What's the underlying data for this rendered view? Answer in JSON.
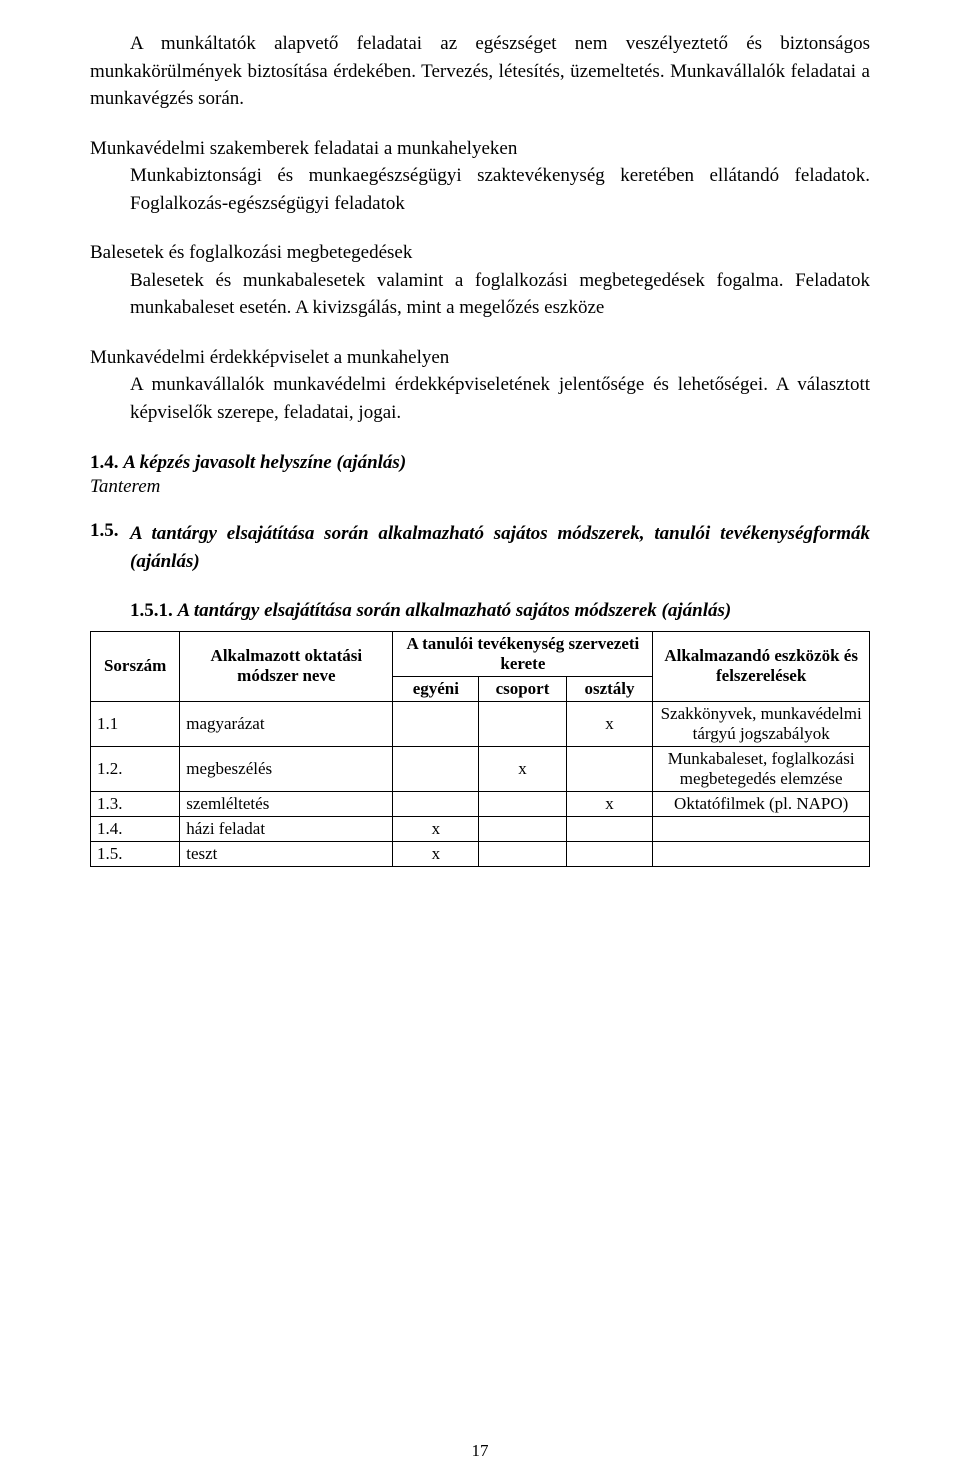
{
  "para1_indent": "A munkáltatók alapvető feladatai az egészséget nem veszélyeztető és biztonságos munkakörülmények biztosítása érdekében. Tervezés, létesítés, üzemeltetés. Munkavállalók feladatai a munkavégzés során.",
  "sec2_heading": "Munkavédelmi szakemberek feladatai a munkahelyeken",
  "sec2_body": "Munkabiztonsági és munkaegészségügyi szaktevékenység keretében ellátandó feladatok. Foglalkozás-egészségügyi feladatok",
  "sec3_heading": "Balesetek és foglalkozási megbetegedések",
  "sec3_body": "Balesetek és munkabalesetek valamint a foglalkozási megbetegedések fogalma. Feladatok munkabaleset esetén. A kivizsgálás, mint a megelőzés eszköze",
  "sec4_heading": "Munkavédelmi érdekképviselet a munkahelyen",
  "sec4_body": "A munkavállalók munkavédelmi érdekképviseletének jelentősége és lehetőségei. A választott képviselők szerepe, feladatai, jogai.",
  "sec14_num": "1.4.",
  "sec14_title": "A képzés javasolt helyszíne (ajánlás)",
  "sec14_loc": "Tanterem",
  "sec15_num": "1.5.",
  "sec15_title": "A tantárgy elsajátítása során alkalmazható sajátos módszerek, tanulói tevékenységformák (ajánlás)",
  "sec151_num": "1.5.1.",
  "sec151_title": "A tantárgy elsajátítása során alkalmazható sajátos módszerek (ajánlás)",
  "table": {
    "hdr_sorszam": "Sorszám",
    "hdr_modszer": "Alkalmazott oktatási módszer neve",
    "hdr_tevekenyseg": "A tanulói tevékenység szervezeti kerete",
    "hdr_eszkozok": "Alkalmazandó eszközök és felszerelések",
    "hdr_egyeni": "egyéni",
    "hdr_csoport": "csoport",
    "hdr_osztaly": "osztály",
    "rows": [
      {
        "num": "1.1",
        "name": "magyarázat",
        "egyeni": "",
        "csoport": "",
        "osztaly": "x",
        "eszk": "Szakkönyvek, munkavédelmi tárgyú jogszabályok"
      },
      {
        "num": "1.2.",
        "name": "megbeszélés",
        "egyeni": "",
        "csoport": "x",
        "osztaly": "",
        "eszk": "Munkabaleset, foglalkozási megbetegedés elemzése"
      },
      {
        "num": "1.3.",
        "name": "szemléltetés",
        "egyeni": "",
        "csoport": "",
        "osztaly": "x",
        "eszk": "Oktatófilmek (pl. NAPO)"
      },
      {
        "num": "1.4.",
        "name": "házi feladat",
        "egyeni": "x",
        "csoport": "",
        "osztaly": "",
        "eszk": ""
      },
      {
        "num": "1.5.",
        "name": "teszt",
        "egyeni": "x",
        "csoport": "",
        "osztaly": "",
        "eszk": ""
      }
    ]
  },
  "page_number": "17"
}
